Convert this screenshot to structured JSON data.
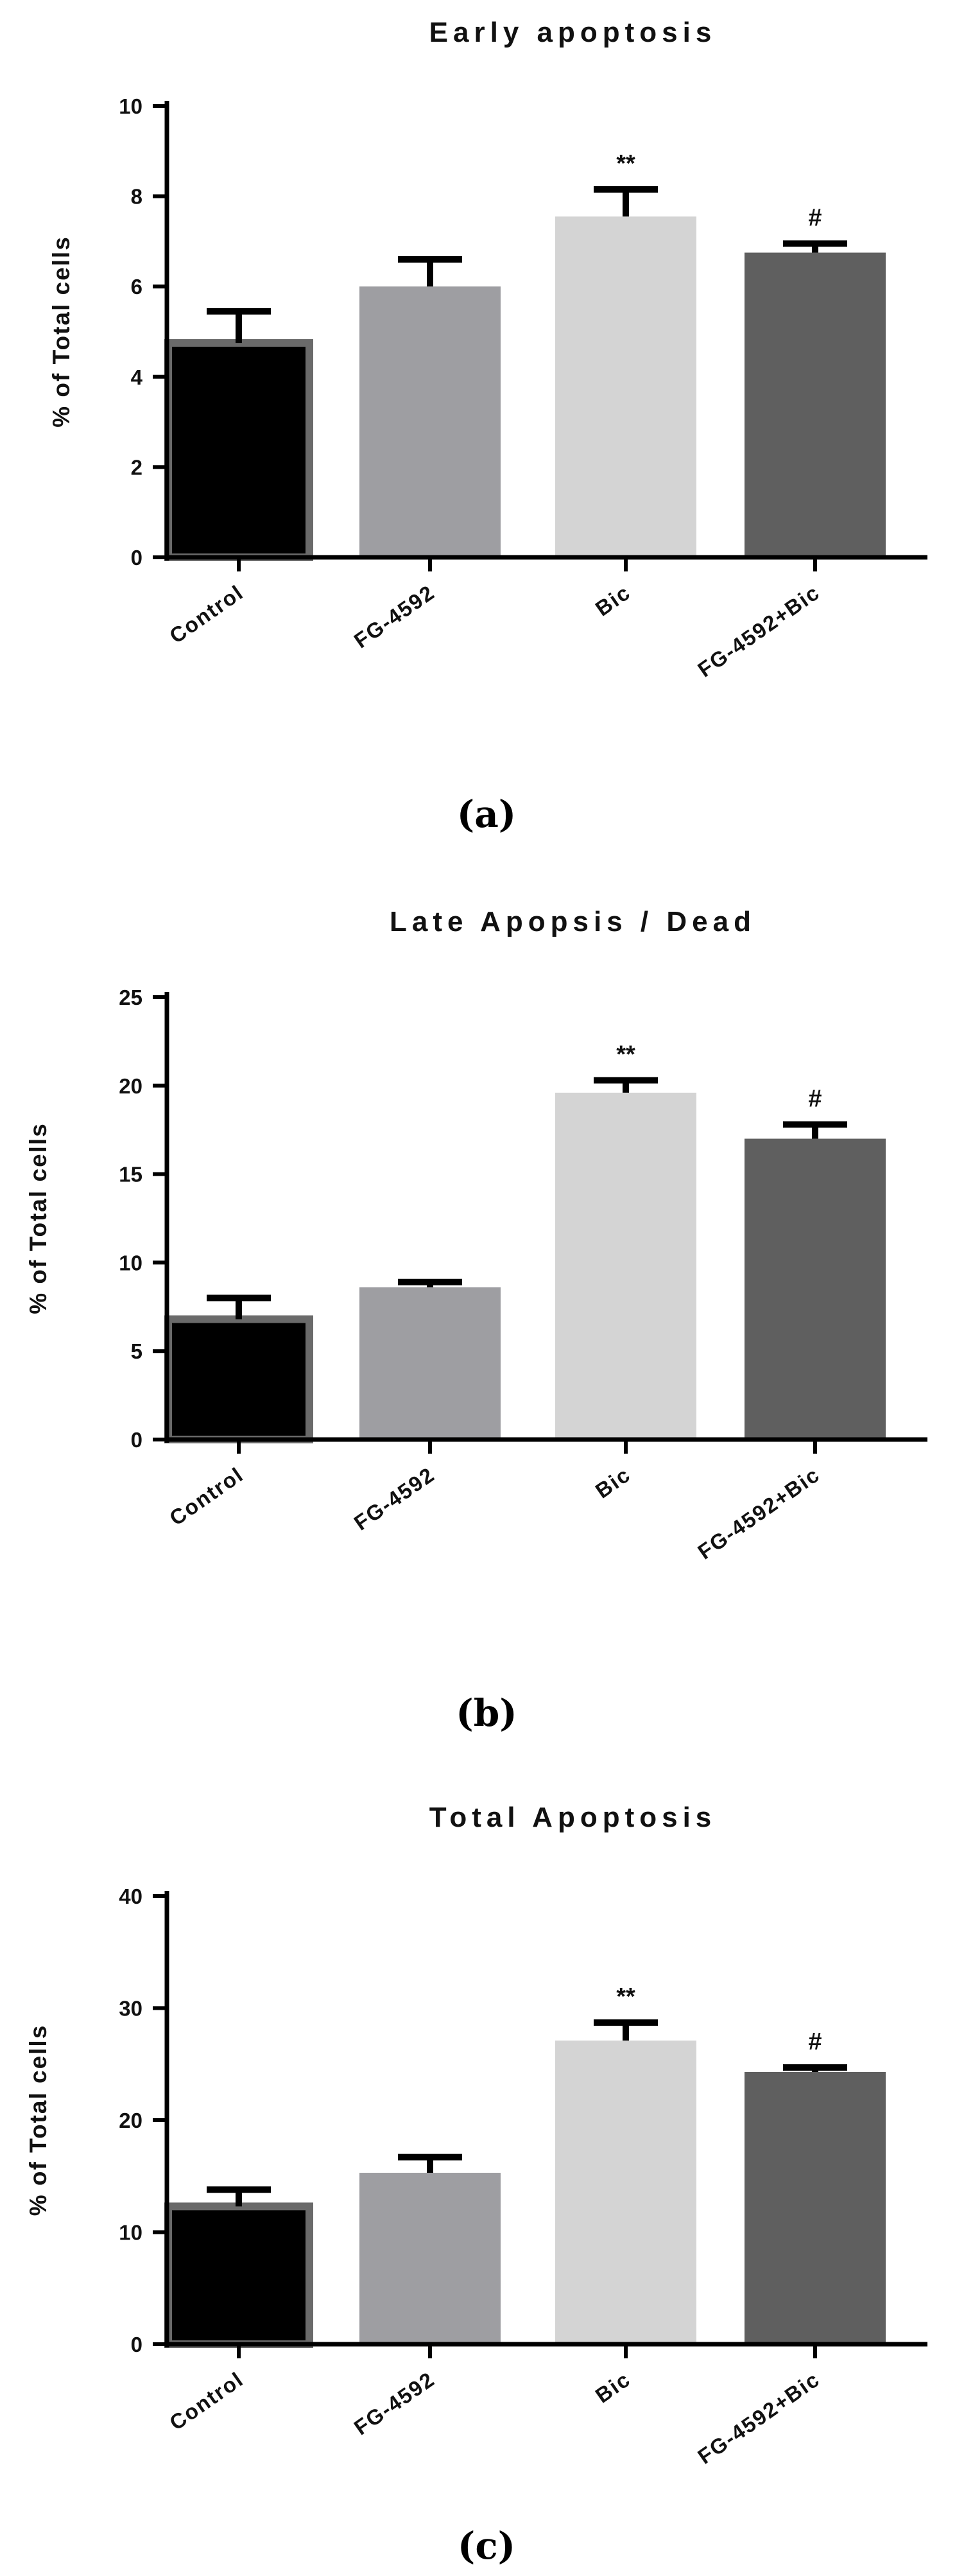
{
  "chart_data": [
    {
      "type": "bar",
      "title": "Early apoptosis",
      "ylabel": "% of Total cells",
      "xlabel": "",
      "caption": "(a)",
      "ylim": [
        0,
        10
      ],
      "yticks": [
        0,
        2,
        4,
        6,
        8,
        10
      ],
      "categories": [
        "Control",
        "FG-4592",
        "Bic",
        "FG-4592+Bic"
      ],
      "values": [
        4.75,
        6.0,
        7.55,
        6.75
      ],
      "errors": [
        0.7,
        0.6,
        0.6,
        0.2
      ],
      "annotations": [
        "",
        "",
        "**",
        "#"
      ],
      "colors": [
        "#000000",
        "#9e9ea2",
        "#d4d4d4",
        "#5f5f5f"
      ]
    },
    {
      "type": "bar",
      "title": "Late Apopsis / Dead",
      "ylabel": "% of Total cells",
      "xlabel": "",
      "caption": "(b)",
      "ylim": [
        0,
        25
      ],
      "yticks": [
        0,
        5,
        10,
        15,
        20,
        25
      ],
      "categories": [
        "Control",
        "FG-4592",
        "Bic",
        "FG-4592+Bic"
      ],
      "values": [
        6.8,
        8.6,
        19.6,
        17.0
      ],
      "errors": [
        1.2,
        0.3,
        0.7,
        0.8
      ],
      "annotations": [
        "",
        "",
        "**",
        "#"
      ],
      "colors": [
        "#000000",
        "#9e9ea2",
        "#d4d4d4",
        "#5f5f5f"
      ]
    },
    {
      "type": "bar",
      "title": "Total Apoptosis",
      "ylabel": "% of Total cells",
      "xlabel": "",
      "caption": "(c)",
      "ylim": [
        0,
        40
      ],
      "yticks": [
        0,
        10,
        20,
        30,
        40
      ],
      "categories": [
        "Control",
        "FG-4592",
        "Bic",
        "FG-4592+Bic"
      ],
      "values": [
        12.3,
        15.3,
        27.1,
        24.3
      ],
      "errors": [
        1.5,
        1.4,
        1.6,
        0.4
      ],
      "annotations": [
        "",
        "",
        "**",
        "#"
      ],
      "colors": [
        "#000000",
        "#9e9ea2",
        "#d4d4d4",
        "#5f5f5f"
      ]
    }
  ]
}
